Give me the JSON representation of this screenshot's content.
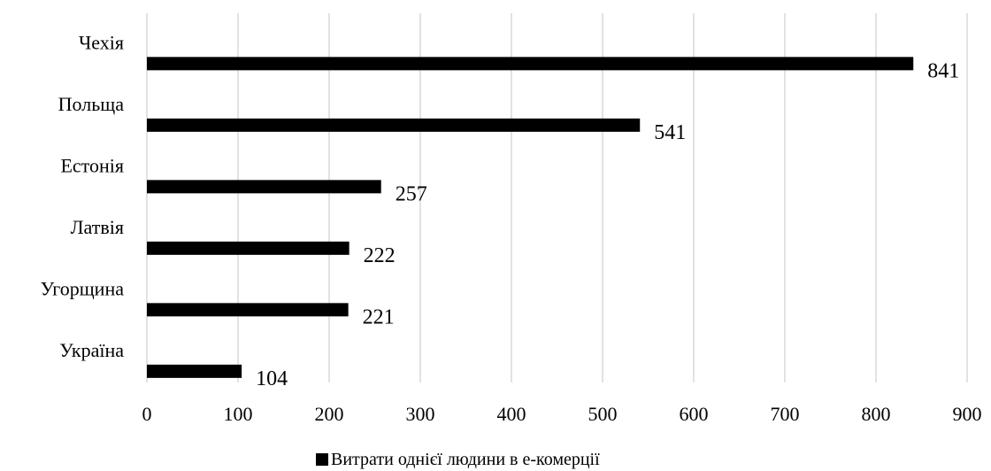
{
  "chart_data": {
    "type": "bar",
    "orientation": "horizontal",
    "categories": [
      "Чехія",
      "Польща",
      "Естонія",
      "Латвія",
      "Угорщина",
      "Україна"
    ],
    "series": [
      {
        "name": "Витрати однієї людини в  е-комерції",
        "values": [
          841,
          541,
          257,
          222,
          221,
          104
        ],
        "color": "#000000"
      }
    ],
    "title": "",
    "xlabel": "",
    "ylabel": "",
    "xlim": [
      0,
      900
    ],
    "xticks": [
      "0",
      "100",
      "200",
      "300",
      "400",
      "500",
      "600",
      "700",
      "800",
      "900"
    ],
    "grid": "vertical",
    "legend": "bottom-center",
    "colors": {
      "bar": "#000000",
      "grid": "#d9d9d9",
      "background": "#ffffff"
    }
  }
}
